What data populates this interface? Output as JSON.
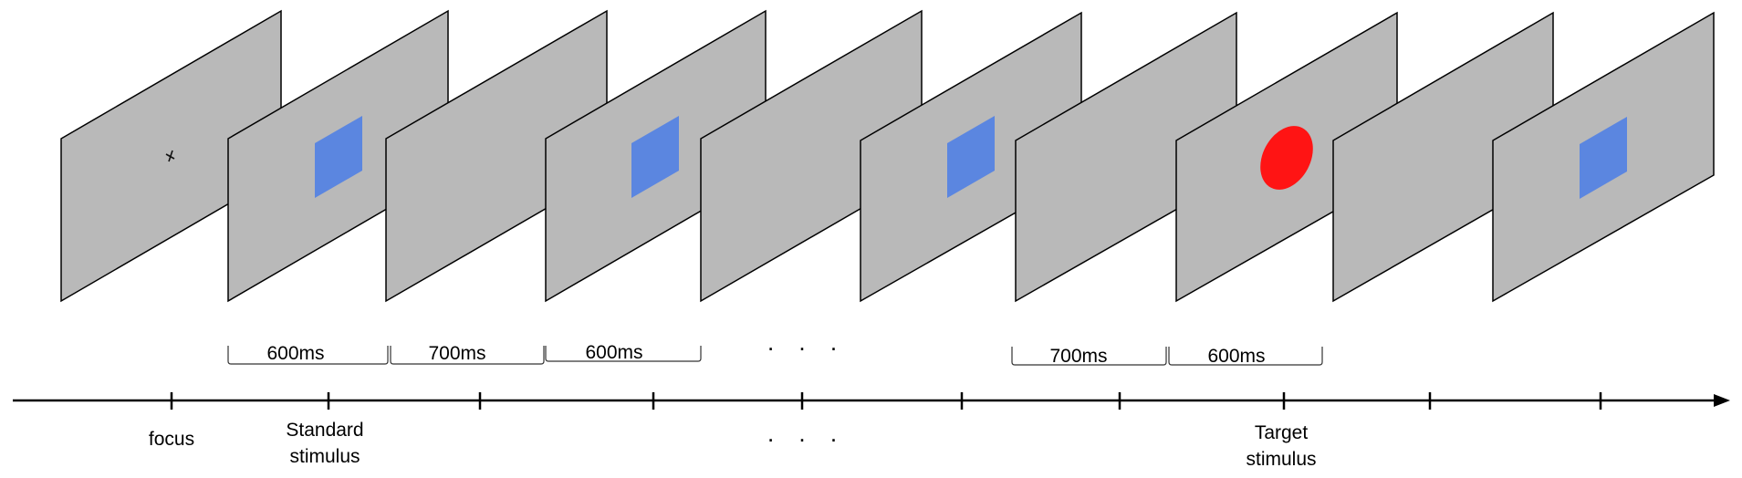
{
  "diagram": {
    "panels": [
      {
        "stimulus": "fixation"
      },
      {
        "stimulus": "standard"
      },
      {
        "stimulus": "blank"
      },
      {
        "stimulus": "standard"
      },
      {
        "stimulus": "blank"
      },
      {
        "stimulus": "standard"
      },
      {
        "stimulus": "blank"
      },
      {
        "stimulus": "target"
      },
      {
        "stimulus": "blank"
      },
      {
        "stimulus": "standard"
      }
    ],
    "durations": [
      "600ms",
      "700ms",
      "600ms",
      "700ms",
      "600ms"
    ],
    "ellipsis_top": ". . .",
    "ellipsis_bottom": ". . .",
    "timeline": {
      "focus": "focus",
      "standard_line1": "Standard",
      "standard_line2": "stimulus",
      "target_line1": "Target",
      "target_line2": "stimulus"
    },
    "colors": {
      "panel": "#b9b9b9",
      "standard": "#5b86e0",
      "target": "#ff1414"
    }
  }
}
